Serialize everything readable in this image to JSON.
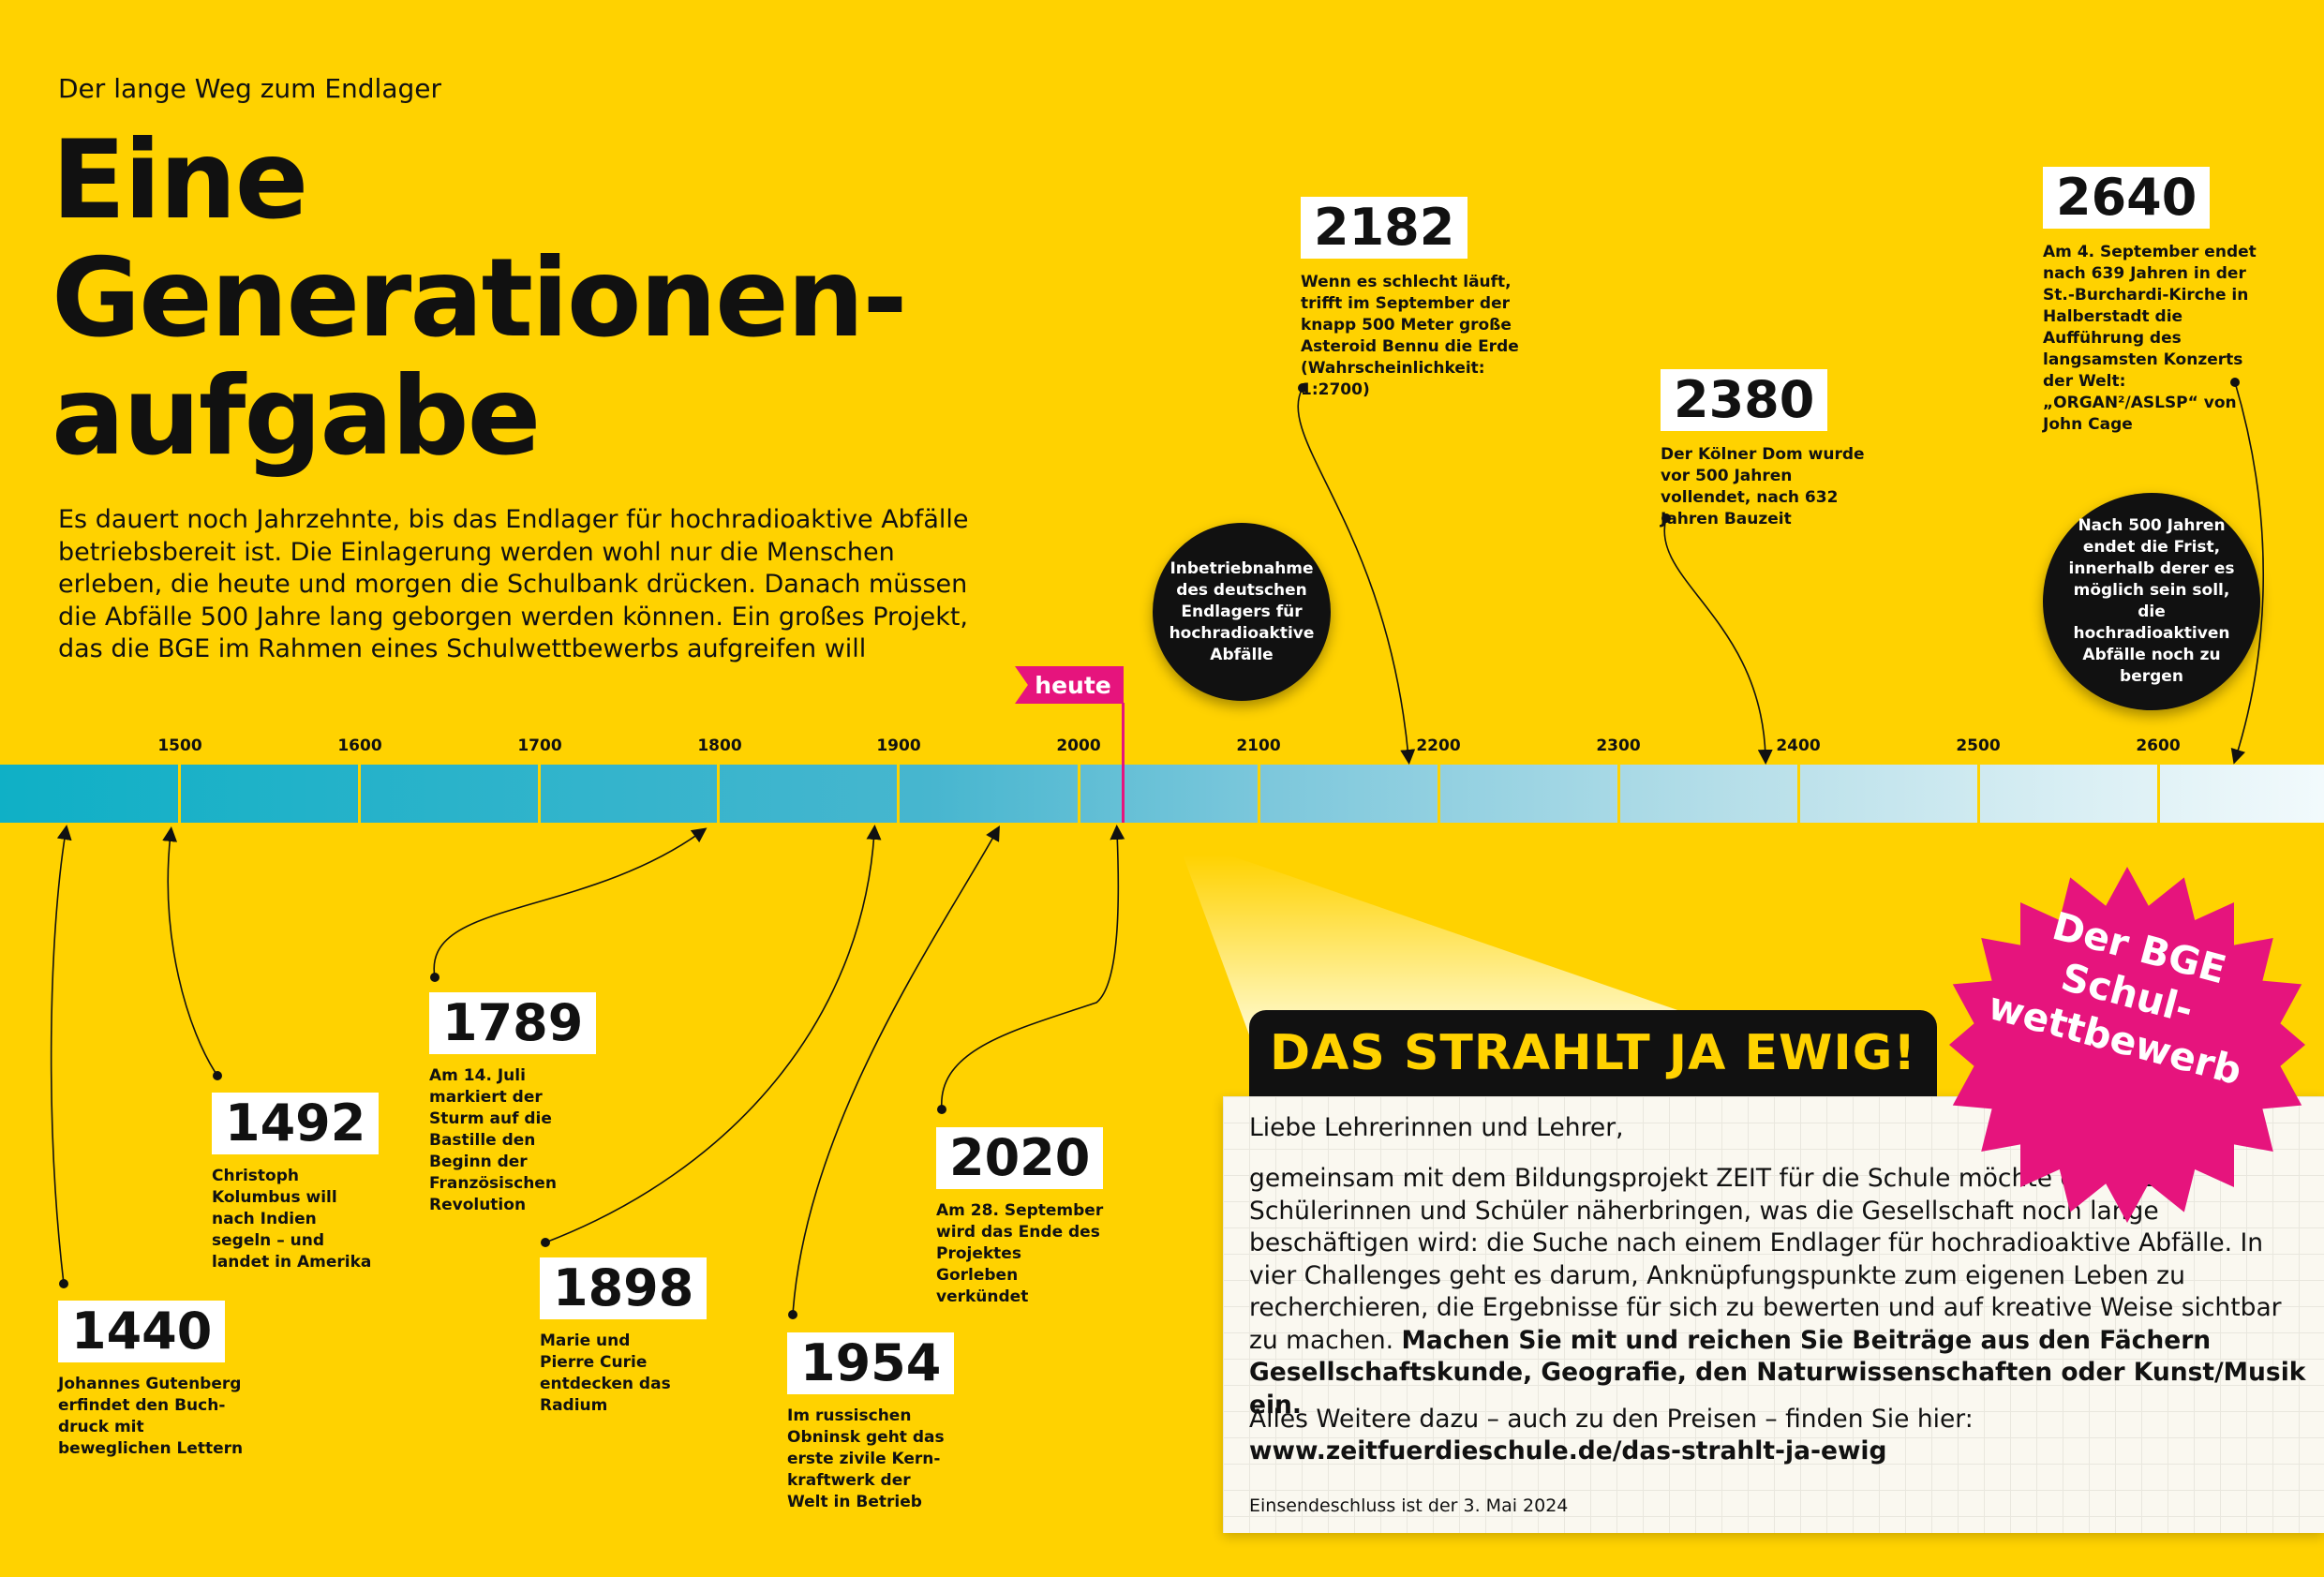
{
  "kicker": "Der lange Weg zum Endlager",
  "title": {
    "line1": "Eine",
    "line2": "Generationen-",
    "line3": "aufgabe"
  },
  "intro": "Es dauert noch Jahrzehnte, bis das Endlager für hochradioaktive Abfälle betriebsbereit ist. Die Einlagerung werden wohl nur die Menschen erleben, die heute und morgen die Schulbank drücken. Danach müssen die Abfälle 500 Jahre lang geborgen werden können. Ein großes Projekt, das die BGE im Rahmen eines Schulwettbewerbs aufgreifen will",
  "timeline": {
    "heute_label": "heute",
    "heute_year": 2024,
    "ticks": [
      "1500",
      "1600",
      "1700",
      "1800",
      "1900",
      "2000",
      "2100",
      "2200",
      "2300",
      "2400",
      "2500",
      "2600"
    ],
    "colors": {
      "band_start": "#0fb0c6",
      "band_end": "#f2fafc",
      "accent": "#e6147d",
      "background": "#ffd200"
    }
  },
  "events": [
    {
      "year": "1440",
      "text": "Johannes Gutenberg erfindet den Buch-druck mit beweglichen Lettern"
    },
    {
      "year": "1492",
      "text": "Christoph Kolumbus will nach Indien segeln – und landet in Amerika"
    },
    {
      "year": "1789",
      "text": "Am 14. Juli markiert der Sturm auf die Bastille den Beginn der Französischen Revolution"
    },
    {
      "year": "1898",
      "text": "Marie und Pierre Curie entdecken das Radium"
    },
    {
      "year": "1954",
      "text": "Im russischen Obninsk geht das erste zivile Kern-kraftwerk der Welt in Betrieb"
    },
    {
      "year": "2020",
      "text": "Am 28. September wird das Ende des Projektes Gorleben verkündet"
    },
    {
      "year": "2182",
      "text": "Wenn es schlecht läuft, trifft im September der knapp 500 Meter große Asteroid Bennu die Erde (Wahrscheinlichkeit: 1:2700)"
    },
    {
      "year": "2380",
      "text": "Der Kölner Dom wurde vor 500 Jahren vollendet, nach 632 Jahren Bauzeit"
    },
    {
      "year": "2640",
      "text": "Am 4. September endet nach 639 Jahren in der St.-Burchardi-Kirche in Halberstadt die Aufführung des langsamsten Konzerts der Welt: „ORGAN²/ASLSP“ von John Cage"
    }
  ],
  "circles": {
    "inbetriebnahme": "Inbetriebnahme des deutschen Endlagers für hochradioaktive Abfälle",
    "frist": "Nach 500 Jahren endet die Frist, innerhalb derer es möglich sein soll, die hochradioaktiven Abfälle noch zu bergen"
  },
  "contest": {
    "heading": "DAS STRAHLT JA EWIG!",
    "greeting": "Liebe Lehrerinnen und Lehrer,",
    "body": "gemeinsam mit dem Bildungsprojekt ZEIT für die Schule möchte die BGE Schülerinnen und Schüler näherbringen, was die Gesellschaft noch lange beschäftigen wird: die Suche nach einem Endlager für hochradioaktive Abfälle. In vier Challenges geht es darum, Anknüpfungspunkte zum eigenen Leben zu recherchieren, die Ergebnisse für sich zu bewerten und auf kreative Weise sichtbar zu machen.",
    "body_bold": "Machen Sie mit und reichen Sie Beiträge aus den Fächern Gesellschaftskunde, Geografie, den Naturwissenschaften oder Kunst/Musik ein.",
    "more": "Alles Weitere dazu – auch zu den Preisen – finden Sie hier:",
    "url": "www.zeitfuerdieschule.de/das-strahlt-ja-ewig",
    "deadline": "Einsendeschluss ist der 3. Mai 2024"
  },
  "seal": {
    "line1": "Der BGE",
    "line2": "Schul-",
    "line3": "wettbewerb"
  }
}
